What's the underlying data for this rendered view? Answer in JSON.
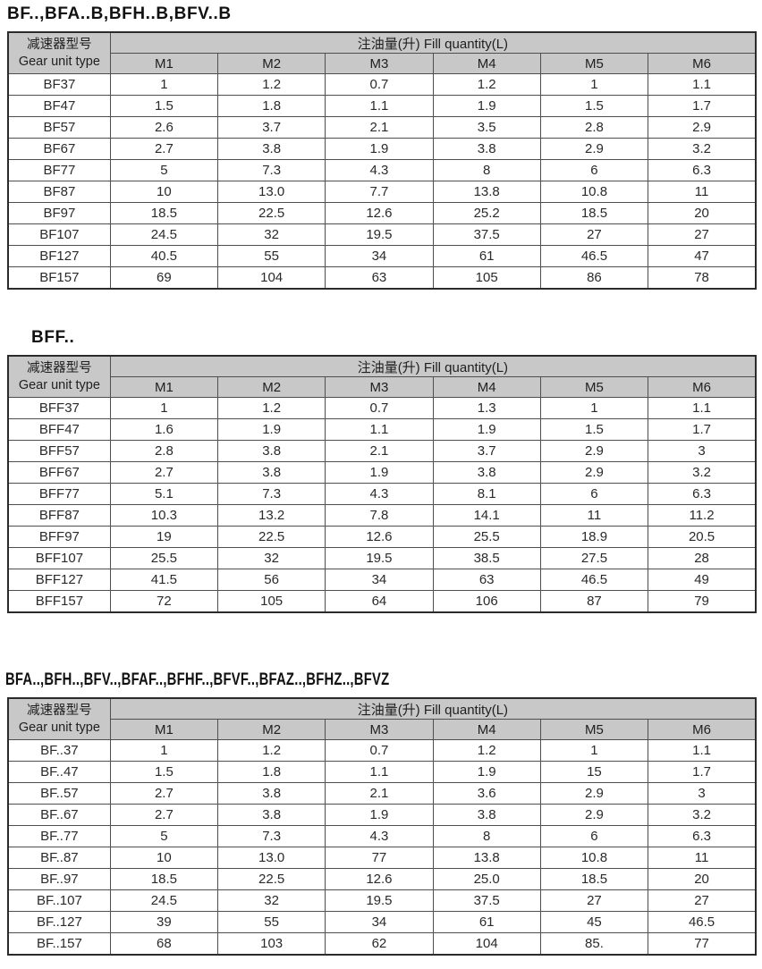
{
  "colors": {
    "header_bg": "#c8c8c8",
    "border_outer": "#2b2b2b",
    "border_inner": "#4f4f4f",
    "text": "#1f1f1f",
    "page_bg": "#ffffff"
  },
  "header": {
    "gear_label_cn": "减速器型号",
    "gear_label_en": "Gear unit type",
    "fill_label": "注油量(升) Fill quantity(L)",
    "columns": [
      "M1",
      "M2",
      "M3",
      "M4",
      "M5",
      "M6"
    ]
  },
  "tables": [
    {
      "title": "BF..,BFA..B,BFH..B,BFV..B",
      "rows": [
        {
          "model": "BF37",
          "values": [
            "1",
            "1.2",
            "0.7",
            "1.2",
            "1",
            "1.1"
          ]
        },
        {
          "model": "BF47",
          "values": [
            "1.5",
            "1.8",
            "1.1",
            "1.9",
            "1.5",
            "1.7"
          ]
        },
        {
          "model": "BF57",
          "values": [
            "2.6",
            "3.7",
            "2.1",
            "3.5",
            "2.8",
            "2.9"
          ]
        },
        {
          "model": "BF67",
          "values": [
            "2.7",
            "3.8",
            "1.9",
            "3.8",
            "2.9",
            "3.2"
          ]
        },
        {
          "model": "BF77",
          "values": [
            "5",
            "7.3",
            "4.3",
            "8",
            "6",
            "6.3"
          ]
        },
        {
          "model": "BF87",
          "values": [
            "10",
            "13.0",
            "7.7",
            "13.8",
            "10.8",
            "11"
          ]
        },
        {
          "model": "BF97",
          "values": [
            "18.5",
            "22.5",
            "12.6",
            "25.2",
            "18.5",
            "20"
          ]
        },
        {
          "model": "BF107",
          "values": [
            "24.5",
            "32",
            "19.5",
            "37.5",
            "27",
            "27"
          ]
        },
        {
          "model": "BF127",
          "values": [
            "40.5",
            "55",
            "34",
            "61",
            "46.5",
            "47"
          ]
        },
        {
          "model": "BF157",
          "values": [
            "69",
            "104",
            "63",
            "105",
            "86",
            "78"
          ]
        }
      ]
    },
    {
      "title": "BFF..",
      "rows": [
        {
          "model": "BFF37",
          "values": [
            "1",
            "1.2",
            "0.7",
            "1.3",
            "1",
            "1.1"
          ]
        },
        {
          "model": "BFF47",
          "values": [
            "1.6",
            "1.9",
            "1.1",
            "1.9",
            "1.5",
            "1.7"
          ]
        },
        {
          "model": "BFF57",
          "values": [
            "2.8",
            "3.8",
            "2.1",
            "3.7",
            "2.9",
            "3"
          ]
        },
        {
          "model": "BFF67",
          "values": [
            "2.7",
            "3.8",
            "1.9",
            "3.8",
            "2.9",
            "3.2"
          ]
        },
        {
          "model": "BFF77",
          "values": [
            "5.1",
            "7.3",
            "4.3",
            "8.1",
            "6",
            "6.3"
          ]
        },
        {
          "model": "BFF87",
          "values": [
            "10.3",
            "13.2",
            "7.8",
            "14.1",
            "11",
            "11.2"
          ]
        },
        {
          "model": "BFF97",
          "values": [
            "19",
            "22.5",
            "12.6",
            "25.5",
            "18.9",
            "20.5"
          ]
        },
        {
          "model": "BFF107",
          "values": [
            "25.5",
            "32",
            "19.5",
            "38.5",
            "27.5",
            "28"
          ]
        },
        {
          "model": "BFF127",
          "values": [
            "41.5",
            "56",
            "34",
            "63",
            "46.5",
            "49"
          ]
        },
        {
          "model": "BFF157",
          "values": [
            "72",
            "105",
            "64",
            "106",
            "87",
            "79"
          ]
        }
      ]
    },
    {
      "title": "BFA..,BFH..,BFV..,BFAF..,BFHF..,BFVF..,BFAZ..,BFHZ..,BFVZ",
      "rows": [
        {
          "model": "BF..37",
          "values": [
            "1",
            "1.2",
            "0.7",
            "1.2",
            "1",
            "1.1"
          ]
        },
        {
          "model": "BF..47",
          "values": [
            "1.5",
            "1.8",
            "1.1",
            "1.9",
            "15",
            "1.7"
          ]
        },
        {
          "model": "BF..57",
          "values": [
            "2.7",
            "3.8",
            "2.1",
            "3.6",
            "2.9",
            "3"
          ]
        },
        {
          "model": "BF..67",
          "values": [
            "2.7",
            "3.8",
            "1.9",
            "3.8",
            "2.9",
            "3.2"
          ]
        },
        {
          "model": "BF..77",
          "values": [
            "5",
            "7.3",
            "4.3",
            "8",
            "6",
            "6.3"
          ]
        },
        {
          "model": "BF..87",
          "values": [
            "10",
            "13.0",
            "77",
            "13.8",
            "10.8",
            "11"
          ]
        },
        {
          "model": "BF..97",
          "values": [
            "18.5",
            "22.5",
            "12.6",
            "25.0",
            "18.5",
            "20"
          ]
        },
        {
          "model": "BF..107",
          "values": [
            "24.5",
            "32",
            "19.5",
            "37.5",
            "27",
            "27"
          ]
        },
        {
          "model": "BF..127",
          "values": [
            "39",
            "55",
            "34",
            "61",
            "45",
            "46.5"
          ]
        },
        {
          "model": "BF..157",
          "values": [
            "68",
            "103",
            "62",
            "104",
            "85.",
            "77"
          ]
        }
      ]
    }
  ]
}
